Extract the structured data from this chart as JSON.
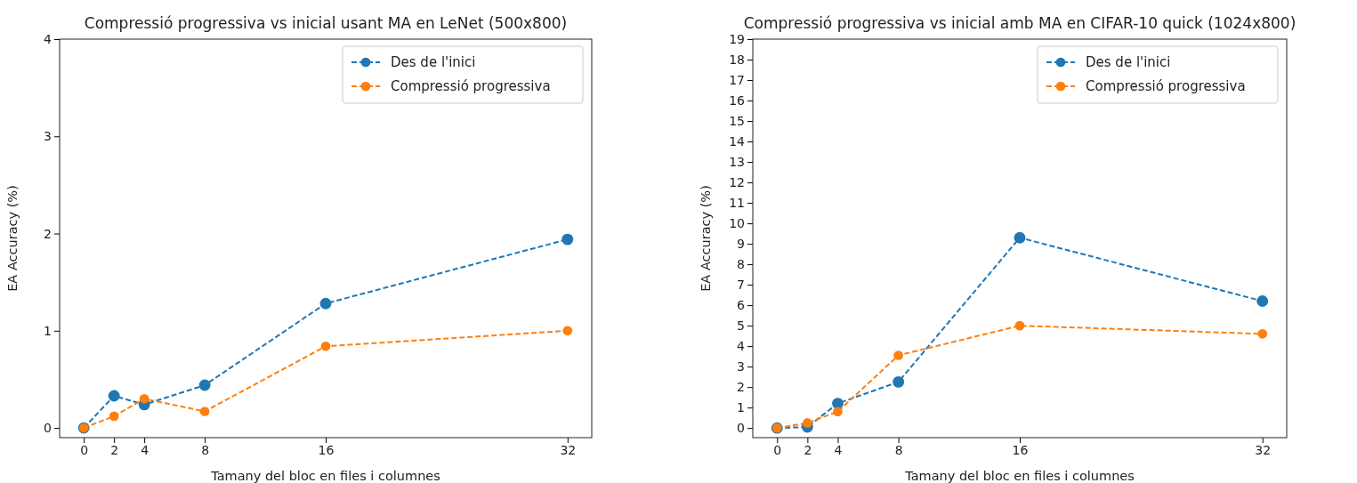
{
  "chart_data": [
    {
      "type": "line",
      "title": "Compressió progressiva vs inicial usant MA en LeNet (500x800)",
      "xlabel": "Tamany del bloc en files i columnes",
      "ylabel": "EA Accuracy (%)",
      "x": [
        0,
        2,
        4,
        8,
        16,
        32
      ],
      "xlim": [
        -1.6,
        33.6
      ],
      "xticks": [
        0,
        2,
        4,
        8,
        16,
        32
      ],
      "ylim": [
        -0.1,
        4
      ],
      "yticks": [
        0,
        1,
        2,
        3,
        4
      ],
      "legend": "top right",
      "marker": "circle",
      "line_style": "dashed",
      "grid": false,
      "series": [
        {
          "name": "Des de l'inici",
          "color": "#1f77b4",
          "values": [
            0,
            0.33,
            0.24,
            0.44,
            1.28,
            1.94
          ]
        },
        {
          "name": "Compressió progressiva",
          "color": "#ff7f0e",
          "values": [
            0,
            0.12,
            0.3,
            0.17,
            0.84,
            1.0
          ]
        }
      ]
    },
    {
      "type": "line",
      "title": "Compressió progressiva vs inicial amb MA en CIFAR-10 quick (1024x800)",
      "xlabel": "Tamany del bloc en files i columnes",
      "ylabel": "EA Accuracy (%)",
      "x": [
        0,
        2,
        4,
        8,
        16,
        32
      ],
      "xlim": [
        -1.6,
        33.6
      ],
      "xticks": [
        0,
        2,
        4,
        8,
        16,
        32
      ],
      "ylim": [
        -0.47,
        19
      ],
      "yticks": [
        0,
        1,
        2,
        3,
        4,
        5,
        6,
        7,
        8,
        9,
        10,
        11,
        12,
        13,
        14,
        15,
        16,
        17,
        18,
        19
      ],
      "legend": "top right",
      "marker": "circle",
      "line_style": "dashed",
      "grid": false,
      "series": [
        {
          "name": "Des de l'inici",
          "color": "#1f77b4",
          "values": [
            0,
            0.05,
            1.2,
            2.25,
            9.3,
            6.2
          ]
        },
        {
          "name": "Compressió progressiva",
          "color": "#ff7f0e",
          "values": [
            0,
            0.25,
            0.8,
            3.55,
            5.0,
            4.6
          ]
        }
      ]
    }
  ]
}
